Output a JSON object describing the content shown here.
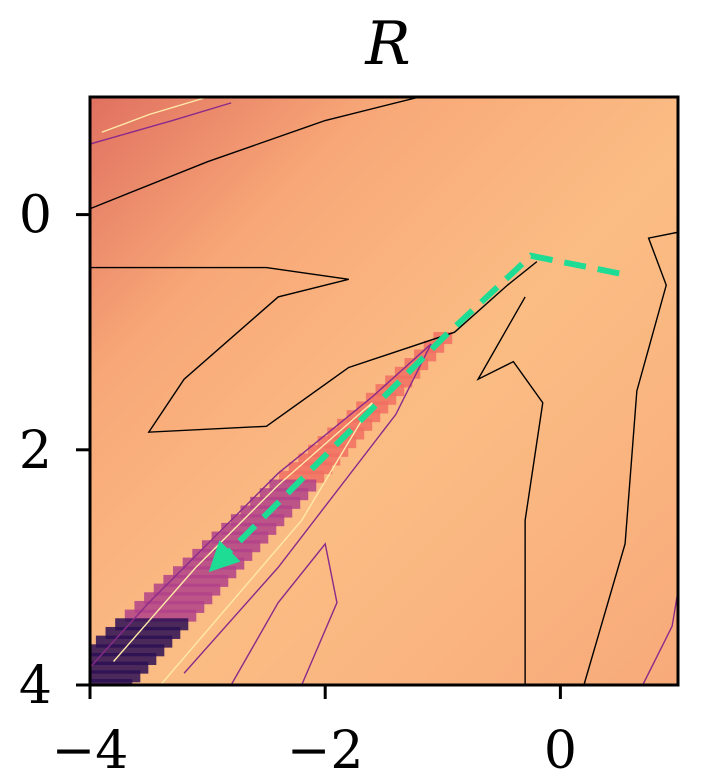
{
  "chart_data": {
    "type": "heatmap",
    "title": "R",
    "xlabel": "",
    "ylabel": "",
    "xlim": [
      -4,
      1
    ],
    "ylim": [
      4,
      -1
    ],
    "x_ticks": [
      -4,
      -2,
      0
    ],
    "y_ticks": [
      0,
      2,
      4
    ],
    "x_tick_labels": [
      "−4",
      "−2",
      "0"
    ],
    "y_tick_labels": [
      "0",
      "2",
      "4"
    ],
    "colormap": "magma",
    "grid": false,
    "background_color": "#fbbd84",
    "contour_colors": [
      "#000000",
      "#8a2a8a",
      "#ffe9a8"
    ],
    "path": {
      "color": "#1fdc94",
      "style": "dashed",
      "arrow_at_end": true,
      "points": [
        [
          0.5,
          0.5
        ],
        [
          -0.25,
          0.35
        ],
        [
          -1.0,
          1.05
        ],
        [
          -1.6,
          1.65
        ],
        [
          -2.9,
          2.95
        ]
      ]
    },
    "valley": {
      "description_color_low": "#2b0f55",
      "color_mid": "#b1428a",
      "color_high": "#f06e62"
    }
  }
}
